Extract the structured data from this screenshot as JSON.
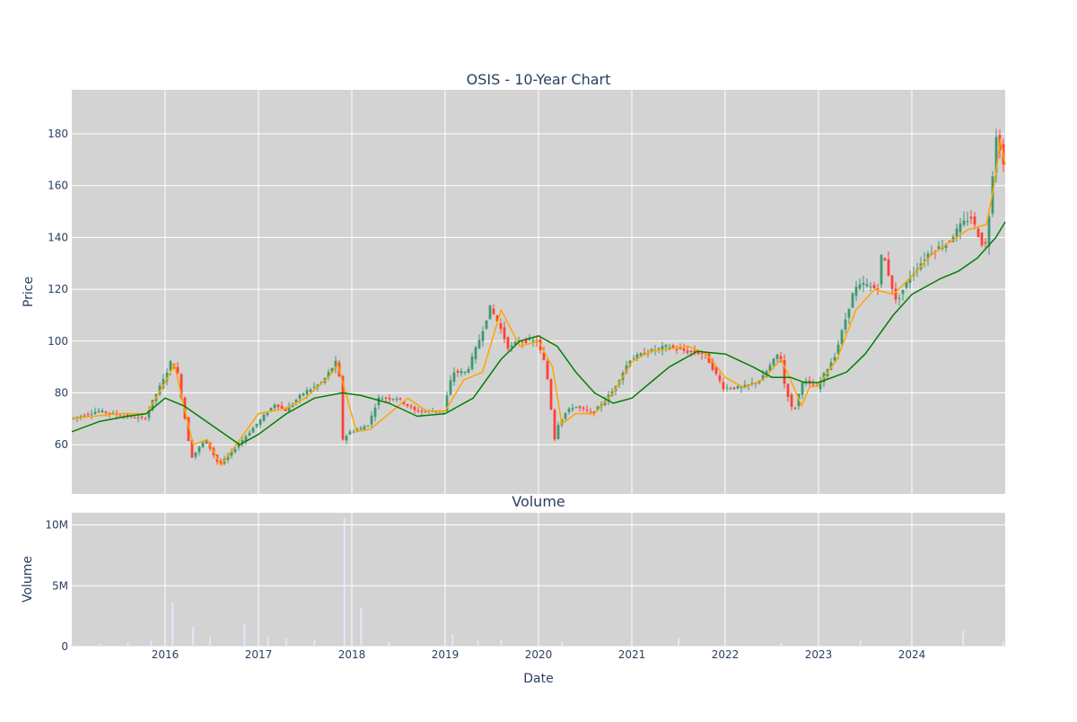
{
  "chart_data": [
    {
      "type": "candlestick",
      "title": "OSIS - 10-Year Chart",
      "xlabel": "",
      "ylabel": "Price",
      "ylim": [
        41,
        197
      ],
      "grid": true,
      "legend": "none",
      "yticks": [
        60,
        80,
        100,
        120,
        140,
        160,
        180
      ],
      "colors": {
        "background": "#d3d3d3",
        "grid": "#ffffff",
        "up": "#3d9970",
        "down": "#ff4136",
        "ma_short": "#ffa500",
        "ma_long": "#008000"
      },
      "series": [
        {
          "type": "close",
          "x": [
            2015.0,
            2015.3,
            2015.6,
            2015.8,
            2015.9,
            2016.0,
            2016.08,
            2016.15,
            2016.3,
            2016.45,
            2016.6,
            2016.8,
            2017.0,
            2017.2,
            2017.3,
            2017.5,
            2017.7,
            2017.85,
            2017.88,
            2017.92,
            2018.0,
            2018.1,
            2018.2,
            2018.3,
            2018.5,
            2018.7,
            2018.9,
            2019.0,
            2019.1,
            2019.25,
            2019.4,
            2019.5,
            2019.6,
            2019.7,
            2019.8,
            2020.0,
            2020.1,
            2020.2,
            2020.23,
            2020.3,
            2020.4,
            2020.6,
            2020.8,
            2021.0,
            2021.2,
            2021.4,
            2021.6,
            2021.8,
            2022.0,
            2022.2,
            2022.4,
            2022.6,
            2022.65,
            2022.75,
            2022.85,
            2023.0,
            2023.2,
            2023.4,
            2023.5,
            2023.65,
            2023.7,
            2023.85,
            2024.0,
            2024.2,
            2024.4,
            2024.55,
            2024.65,
            2024.8,
            2024.85,
            2024.92,
            2024.96,
            2025.0
          ],
          "y": [
            70,
            73,
            71,
            70,
            78,
            85,
            92,
            88,
            55,
            62,
            52,
            60,
            68,
            76,
            73,
            80,
            84,
            92,
            89,
            62,
            65,
            66,
            68,
            78,
            78,
            73,
            73,
            73,
            88,
            88,
            102,
            113,
            106,
            97,
            100,
            100,
            90,
            60,
            68,
            72,
            75,
            72,
            80,
            93,
            96,
            98,
            96,
            95,
            82,
            82,
            85,
            96,
            84,
            72,
            85,
            82,
            95,
            120,
            122,
            120,
            135,
            115,
            125,
            134,
            138,
            145,
            148,
            135,
            150,
            180,
            175,
            168
          ]
        },
        {
          "type": "ma_short",
          "x": [
            2015.0,
            2015.5,
            2015.8,
            2016.0,
            2016.1,
            2016.2,
            2016.3,
            2016.45,
            2016.6,
            2016.8,
            2017.0,
            2017.3,
            2017.5,
            2017.75,
            2017.85,
            2017.95,
            2018.05,
            2018.2,
            2018.4,
            2018.6,
            2018.8,
            2019.0,
            2019.2,
            2019.4,
            2019.6,
            2019.8,
            2020.0,
            2020.15,
            2020.25,
            2020.4,
            2020.6,
            2020.8,
            2021.0,
            2021.2,
            2021.4,
            2021.6,
            2021.8,
            2022.0,
            2022.2,
            2022.4,
            2022.6,
            2022.7,
            2022.82,
            2022.9,
            2023.0,
            2023.2,
            2023.4,
            2023.6,
            2023.8,
            2024.0,
            2024.2,
            2024.4,
            2024.6,
            2024.8,
            2024.88,
            2024.95,
            2025.0
          ],
          "y": [
            70,
            72,
            72,
            84,
            91,
            75,
            60,
            62,
            52,
            62,
            72,
            74,
            78,
            86,
            91,
            78,
            65,
            66,
            72,
            78,
            73,
            73,
            85,
            88,
            112,
            98,
            100,
            90,
            68,
            72,
            72,
            80,
            92,
            96,
            97,
            98,
            95,
            86,
            82,
            85,
            93,
            85,
            75,
            82,
            83,
            93,
            112,
            120,
            118,
            125,
            133,
            138,
            143,
            145,
            160,
            178,
            168
          ]
        },
        {
          "type": "ma_long",
          "x": [
            2015.0,
            2015.3,
            2015.6,
            2015.8,
            2016.0,
            2016.2,
            2016.4,
            2016.6,
            2016.8,
            2017.0,
            2017.3,
            2017.6,
            2017.9,
            2018.1,
            2018.4,
            2018.7,
            2019.0,
            2019.3,
            2019.6,
            2019.8,
            2020.0,
            2020.2,
            2020.4,
            2020.6,
            2020.8,
            2021.0,
            2021.2,
            2021.4,
            2021.7,
            2022.0,
            2022.3,
            2022.5,
            2022.7,
            2022.85,
            2023.0,
            2023.3,
            2023.5,
            2023.8,
            2024.0,
            2024.3,
            2024.5,
            2024.7,
            2024.9,
            2025.0
          ],
          "y": [
            65,
            69,
            71,
            72,
            78,
            75,
            70,
            65,
            60,
            64,
            72,
            78,
            80,
            79,
            76,
            71,
            72,
            78,
            93,
            100,
            102,
            98,
            88,
            80,
            76,
            78,
            84,
            90,
            96,
            95,
            90,
            86,
            86,
            84,
            84,
            88,
            95,
            110,
            118,
            124,
            127,
            132,
            140,
            146
          ]
        }
      ]
    },
    {
      "type": "bar",
      "title": "Volume",
      "xlabel": "Date",
      "ylabel": "Volume",
      "ylim": [
        0,
        11000000
      ],
      "grid": true,
      "yticks": [
        0,
        5000000,
        10000000
      ],
      "ytick_labels": [
        "0",
        "5M",
        "10M"
      ],
      "xticks": [
        2016,
        2017,
        2018,
        2019,
        2020,
        2021,
        2022,
        2023,
        2024
      ],
      "xtick_labels": [
        "2016",
        "2017",
        "2018",
        "2019",
        "2020",
        "2021",
        "2022",
        "2023",
        "2024"
      ],
      "colors": {
        "background": "#d3d3d3",
        "grid": "#ffffff",
        "bar": "#e6e6fa"
      },
      "x": [
        2015.0,
        2015.3,
        2015.6,
        2015.85,
        2016.08,
        2016.3,
        2016.48,
        2016.85,
        2017.1,
        2017.3,
        2017.6,
        2017.92,
        2018.1,
        2018.4,
        2019.08,
        2019.35,
        2019.6,
        2020.25,
        2021.5,
        2022.6,
        2023.45,
        2024.55,
        2024.98
      ],
      "values": [
        200000,
        250000,
        300000,
        500000,
        3600000,
        1600000,
        800000,
        1900000,
        800000,
        700000,
        600000,
        10600000,
        3200000,
        400000,
        1000000,
        500000,
        600000,
        400000,
        700000,
        300000,
        600000,
        1300000,
        400000
      ]
    }
  ]
}
